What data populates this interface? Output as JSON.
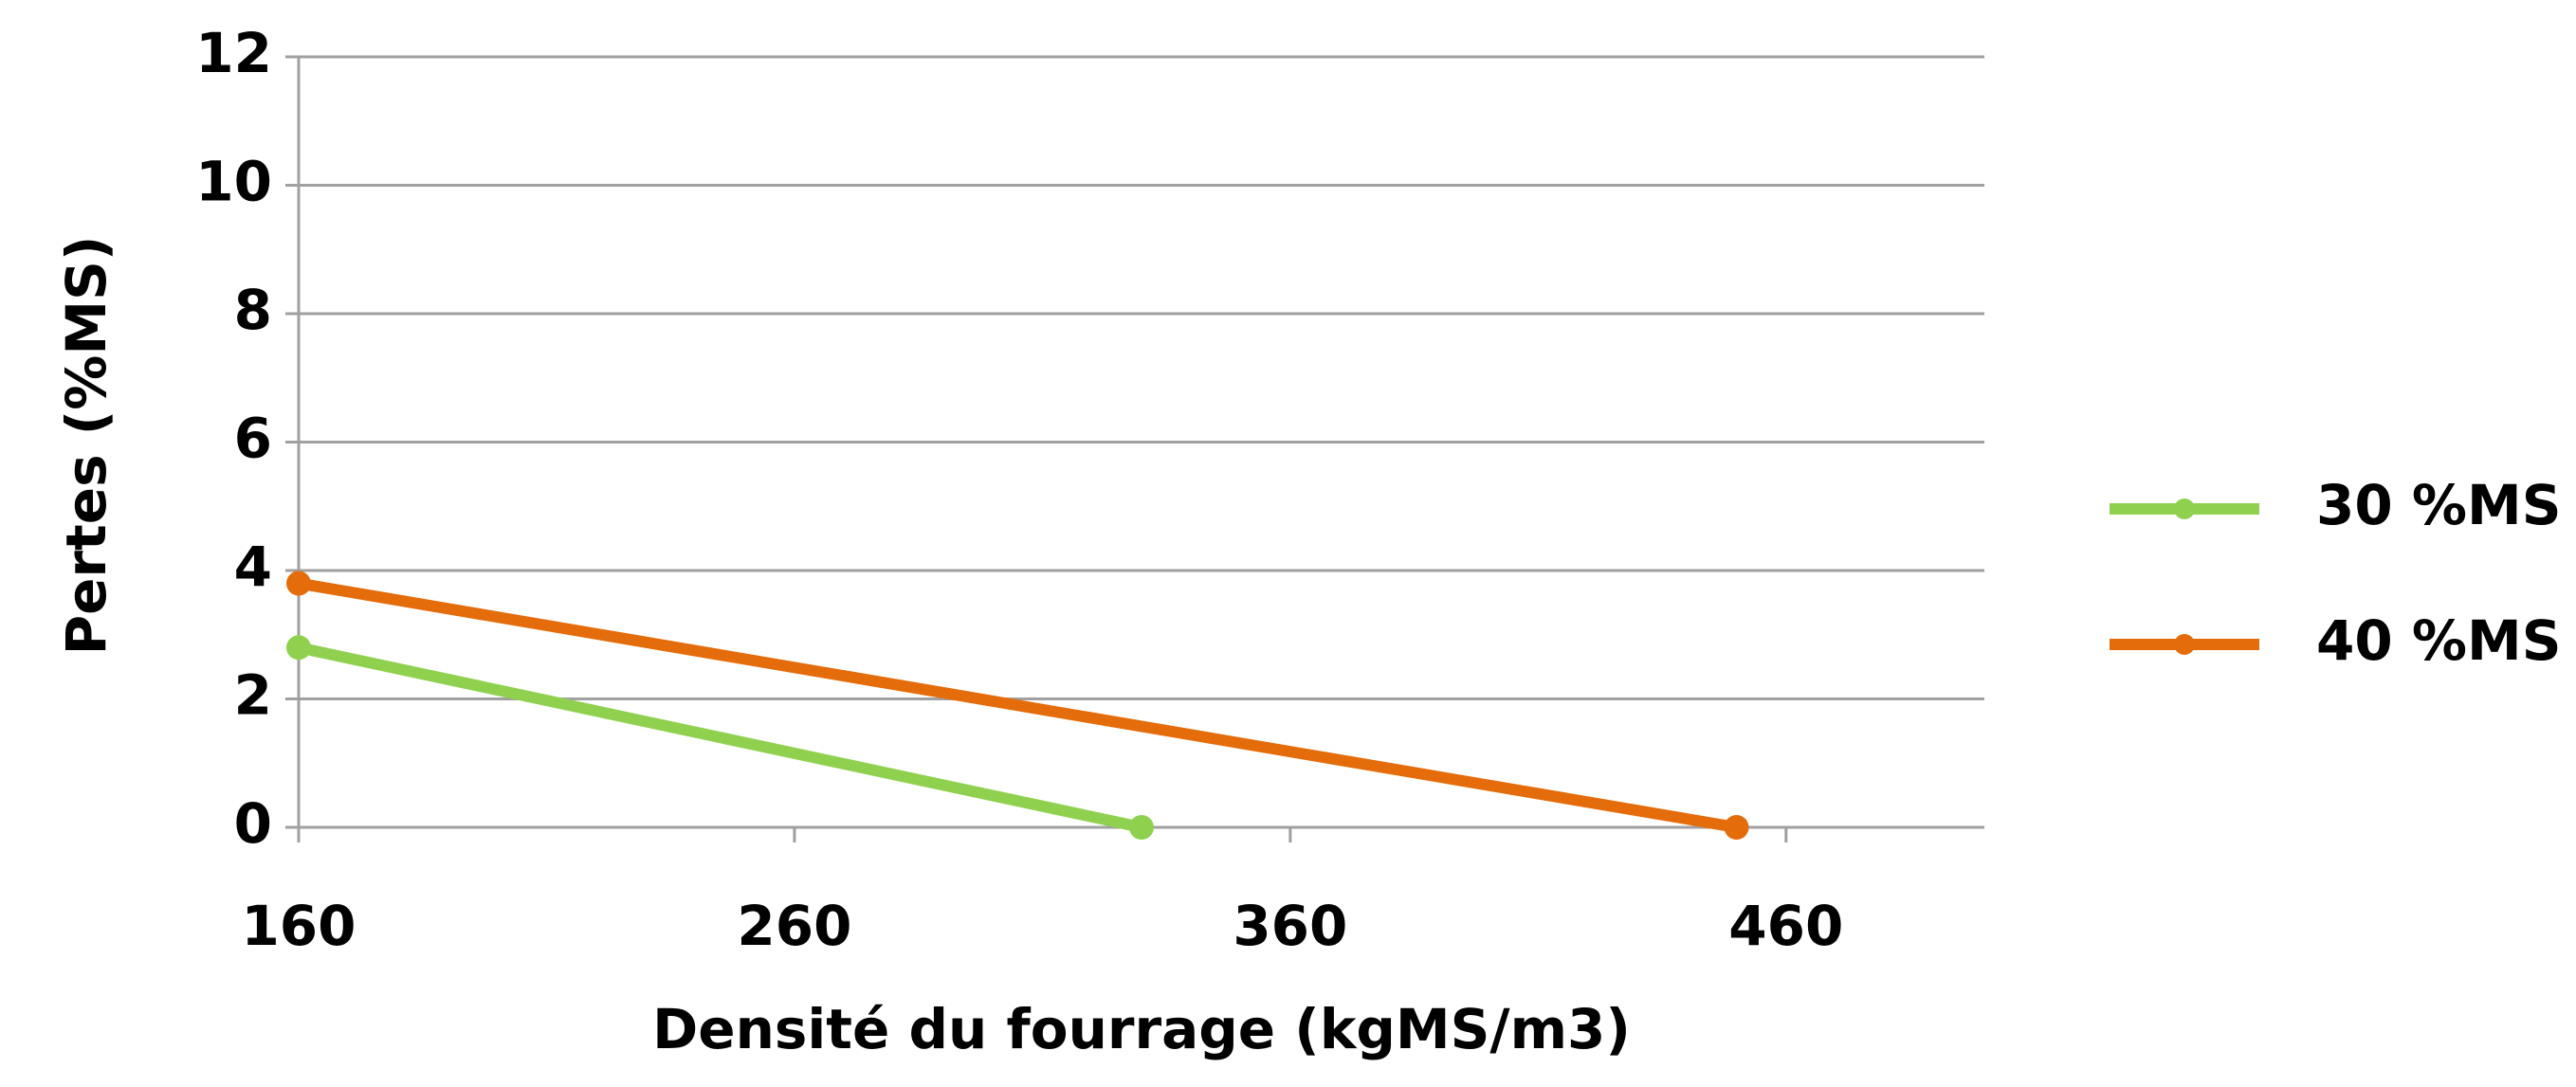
{
  "chart_data": {
    "type": "line",
    "x_label": "Densité du fourrage (kgMS/m3)",
    "y_label": "Pertes (%MS)",
    "xlim": [
      160,
      500
    ],
    "xticks": [
      160,
      260,
      360,
      460
    ],
    "ylim": [
      0,
      12
    ],
    "yticks": [
      0,
      2,
      4,
      6,
      8,
      10,
      12
    ],
    "grid": true,
    "legend": "right",
    "series": [
      {
        "name": "30 %MS",
        "color": "#8fd14f",
        "x": [
          160,
          330
        ],
        "values": [
          2.8,
          0
        ]
      },
      {
        "name": "40 %MS",
        "color": "#e46c0a",
        "x": [
          160,
          450
        ],
        "values": [
          3.8,
          0
        ]
      }
    ]
  }
}
